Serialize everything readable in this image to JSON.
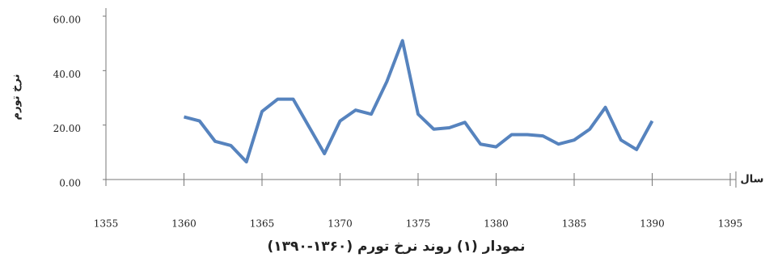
{
  "chart_data": {
    "type": "line",
    "title": "نمودار (۱) روند نرخ تورم (۱۳۶۰-۱۳۹۰)",
    "x_label": "سال",
    "y_label": "نرخ تورم",
    "x": [
      1360,
      1361,
      1362,
      1363,
      1364,
      1365,
      1366,
      1367,
      1368,
      1369,
      1370,
      1371,
      1372,
      1373,
      1374,
      1375,
      1376,
      1377,
      1378,
      1379,
      1380,
      1381,
      1382,
      1383,
      1384,
      1385,
      1386,
      1387,
      1388,
      1389,
      1390
    ],
    "values": [
      23,
      21.5,
      14,
      12.5,
      6.5,
      25,
      29.5,
      29.5,
      19.5,
      9.5,
      21.5,
      25.5,
      24,
      36,
      51,
      24,
      18.5,
      19,
      21,
      13,
      12,
      16.5,
      16.5,
      16,
      13,
      14.5,
      18.5,
      26.5,
      14.5,
      11,
      21.5
    ],
    "color": "#5683be",
    "xlim": [
      1355,
      1395
    ],
    "xticks": [
      1355,
      1360,
      1365,
      1370,
      1375,
      1380,
      1385,
      1390,
      1395
    ],
    "ylim": [
      0,
      60
    ],
    "yticks": [
      {
        "value": 0,
        "label": "0.00"
      },
      {
        "value": 20,
        "label": "20.00"
      },
      {
        "value": 40,
        "label": "40.00"
      },
      {
        "value": 60,
        "label": "60.00"
      }
    ]
  }
}
